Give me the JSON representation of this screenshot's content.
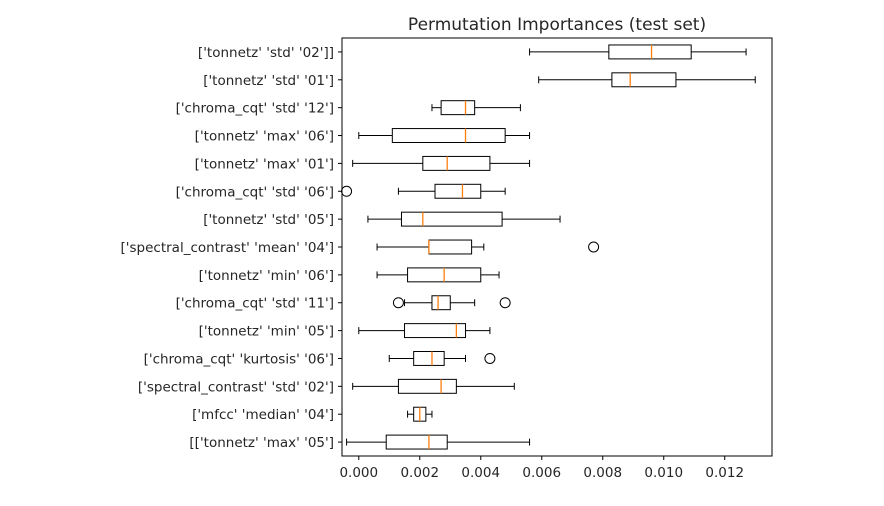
{
  "chart_data": {
    "type": "boxplot",
    "orientation": "horizontal",
    "title": "Permutation Importances (test set)",
    "xlabel": "",
    "ylabel": "",
    "xlim": [
      -0.00055,
      0.01355
    ],
    "xticks": [
      0.0,
      0.002,
      0.004,
      0.006,
      0.008,
      0.01,
      0.012
    ],
    "xtick_labels": [
      "0.000",
      "0.002",
      "0.004",
      "0.006",
      "0.008",
      "0.010",
      "0.012"
    ],
    "grid": false,
    "colors": {
      "box": "#000000",
      "median": "#ff7f0e",
      "background": "#ffffff"
    },
    "categories": [
      "['tonnetz' 'std' '02']]",
      "['tonnetz' 'std' '01']",
      "['chroma_cqt' 'std' '12']",
      "['tonnetz' 'max' '06']",
      "['tonnetz' 'max' '01']",
      "['chroma_cqt' 'std' '06']",
      "['tonnetz' 'std' '05']",
      "['spectral_contrast' 'mean' '04']",
      "['tonnetz' 'min' '06']",
      "['chroma_cqt' 'std' '11']",
      "['tonnetz' 'min' '05']",
      "['chroma_cqt' 'kurtosis' '06']",
      "['spectral_contrast' 'std' '02']",
      "['mfcc' 'median' '04']",
      "[['tonnetz' 'max' '05']"
    ],
    "boxes": [
      {
        "whislo": 0.0056,
        "q1": 0.0082,
        "med": 0.0096,
        "q3": 0.0109,
        "whishi": 0.0127,
        "fliers": []
      },
      {
        "whislo": 0.0059,
        "q1": 0.0083,
        "med": 0.0089,
        "q3": 0.0104,
        "whishi": 0.013,
        "fliers": []
      },
      {
        "whislo": 0.0024,
        "q1": 0.0027,
        "med": 0.0035,
        "q3": 0.0038,
        "whishi": 0.0053,
        "fliers": []
      },
      {
        "whislo": 0.0,
        "q1": 0.0011,
        "med": 0.0035,
        "q3": 0.0048,
        "whishi": 0.0056,
        "fliers": []
      },
      {
        "whislo": -0.0002,
        "q1": 0.0021,
        "med": 0.0029,
        "q3": 0.0043,
        "whishi": 0.0056,
        "fliers": []
      },
      {
        "whislo": 0.0013,
        "q1": 0.0025,
        "med": 0.0034,
        "q3": 0.004,
        "whishi": 0.0048,
        "fliers": [
          -0.0004
        ]
      },
      {
        "whislo": 0.0003,
        "q1": 0.0014,
        "med": 0.0021,
        "q3": 0.0047,
        "whishi": 0.0066,
        "fliers": []
      },
      {
        "whislo": 0.0006,
        "q1": 0.0023,
        "med": 0.0023,
        "q3": 0.0037,
        "whishi": 0.0041,
        "fliers": [
          0.0077
        ]
      },
      {
        "whislo": 0.0006,
        "q1": 0.0016,
        "med": 0.0028,
        "q3": 0.004,
        "whishi": 0.0046,
        "fliers": []
      },
      {
        "whislo": 0.0015,
        "q1": 0.0024,
        "med": 0.0026,
        "q3": 0.003,
        "whishi": 0.0038,
        "fliers": [
          0.0013,
          0.0048
        ]
      },
      {
        "whislo": 0.0,
        "q1": 0.0015,
        "med": 0.0032,
        "q3": 0.0035,
        "whishi": 0.0043,
        "fliers": []
      },
      {
        "whislo": 0.001,
        "q1": 0.0018,
        "med": 0.0024,
        "q3": 0.0028,
        "whishi": 0.0035,
        "fliers": [
          0.0043
        ]
      },
      {
        "whislo": -0.0002,
        "q1": 0.0013,
        "med": 0.0027,
        "q3": 0.0032,
        "whishi": 0.0051,
        "fliers": []
      },
      {
        "whislo": 0.0016,
        "q1": 0.0018,
        "med": 0.002,
        "q3": 0.0022,
        "whishi": 0.0024,
        "fliers": []
      },
      {
        "whislo": -0.0004,
        "q1": 0.0009,
        "med": 0.0023,
        "q3": 0.0029,
        "whishi": 0.0056,
        "fliers": []
      }
    ]
  }
}
